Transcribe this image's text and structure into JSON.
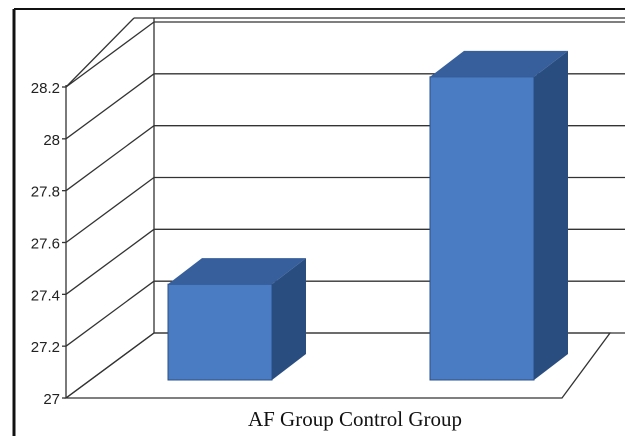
{
  "chart_data": {
    "type": "bar",
    "style": "3d-column",
    "categories": [
      "AF Group",
      "Control Group"
    ],
    "category_label_text": "AF Group Control Group",
    "values": [
      27.42,
      28.22
    ],
    "ylim": [
      27,
      28.2
    ],
    "yticks": [
      "27",
      "27.2",
      "27.4",
      "27.6",
      "27.8",
      "28",
      "28.2"
    ],
    "title": "",
    "xlabel": "",
    "ylabel": "",
    "grid": true,
    "legend": "none",
    "colors": {
      "bar_front": "#4a7cc4",
      "bar_side": "#2a4d80",
      "bar_top": "#365f9c",
      "gridline": "#333333",
      "border": "#111111"
    }
  }
}
